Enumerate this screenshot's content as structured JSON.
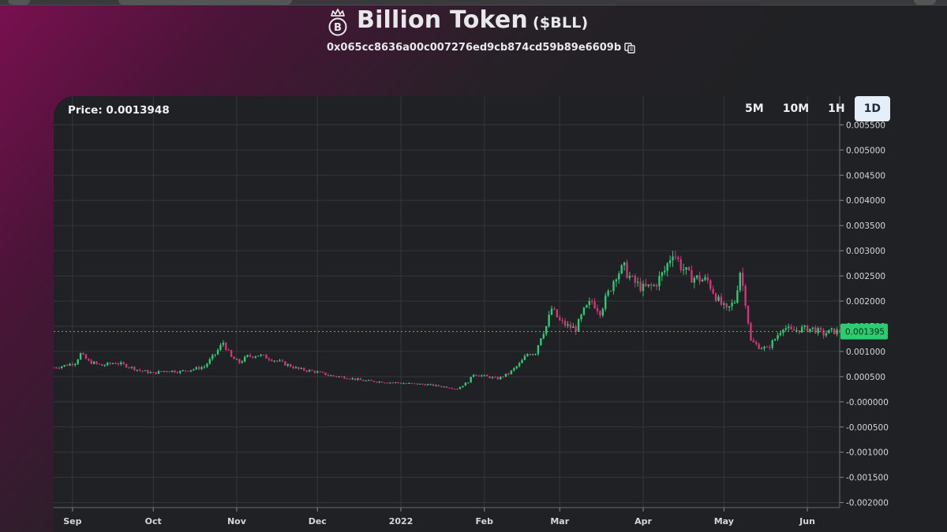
{
  "header": {
    "token_name": "Billion Token",
    "token_symbol": "($BLL)",
    "address": "0x065cc8636a00c007276ed9cb874cd59b89e6609b",
    "logo_icon": "crown-b-logo-icon",
    "copy_icon": "copy-icon"
  },
  "chart_panel": {
    "price_label": "Price: 0.0013948",
    "timeframes": [
      {
        "label": "5M",
        "active": false
      },
      {
        "label": "10M",
        "active": false
      },
      {
        "label": "1H",
        "active": false
      },
      {
        "label": "1D",
        "active": true
      }
    ]
  },
  "colors": {
    "up": "#2ecc71",
    "down": "#d6337a",
    "last_price_badge": "#2ecc71",
    "grid": "#34363a",
    "background": "#202124"
  },
  "chart_data": {
    "type": "candlestick",
    "title": "",
    "xlabel": "",
    "ylabel": "",
    "last_price": 0.001395,
    "last_price_label": "0.001395",
    "ylim": [
      -0.0021,
      0.0056
    ],
    "y_ticks": [
      0.0055,
      0.005,
      0.0045,
      0.004,
      0.0035,
      0.003,
      0.0025,
      0.002,
      0.0015,
      0.001,
      0.0005,
      0.0,
      -0.0005,
      -0.001,
      -0.0015,
      -0.002
    ],
    "y_tick_labels": [
      "0.005500",
      "0.005000",
      "0.004500",
      "0.004000",
      "0.003500",
      "0.003000",
      "0.002500",
      "0.002000",
      "0.001500",
      "0.001000",
      "0.000500",
      "-0.000000",
      "-0.000500",
      "-0.001000",
      "-0.001500",
      "-0.002000"
    ],
    "x_range": [
      "2021-08-25",
      "2022-06-13"
    ],
    "x_ticks": [
      {
        "date": "2021-09-01",
        "label": "Sep"
      },
      {
        "date": "2021-10-01",
        "label": "Oct"
      },
      {
        "date": "2021-11-01",
        "label": "Nov"
      },
      {
        "date": "2021-12-01",
        "label": "Dec"
      },
      {
        "date": "2022-01-01",
        "label": "2022"
      },
      {
        "date": "2022-02-01",
        "label": "Feb"
      },
      {
        "date": "2022-03-01",
        "label": "Mar"
      },
      {
        "date": "2022-04-01",
        "label": "Apr"
      },
      {
        "date": "2022-05-01",
        "label": "May"
      },
      {
        "date": "2022-06-01",
        "label": "Jun"
      }
    ],
    "grid": true,
    "close_series": [
      [
        "2021-08-25",
        0.00068
      ],
      [
        "2021-08-29",
        0.00072
      ],
      [
        "2021-09-02",
        0.00078
      ],
      [
        "2021-09-04",
        0.00095
      ],
      [
        "2021-09-07",
        0.0008
      ],
      [
        "2021-09-12",
        0.00072
      ],
      [
        "2021-09-17",
        0.00078
      ],
      [
        "2021-09-22",
        0.0007
      ],
      [
        "2021-09-26",
        0.00062
      ],
      [
        "2021-10-01",
        0.00057
      ],
      [
        "2021-10-06",
        0.00062
      ],
      [
        "2021-10-11",
        0.0006
      ],
      [
        "2021-10-16",
        0.00065
      ],
      [
        "2021-10-20",
        0.0007
      ],
      [
        "2021-10-24",
        0.00095
      ],
      [
        "2021-10-27",
        0.00118
      ],
      [
        "2021-10-30",
        0.00088
      ],
      [
        "2021-11-02",
        0.00078
      ],
      [
        "2021-11-05",
        0.0009
      ],
      [
        "2021-11-09",
        0.00093
      ],
      [
        "2021-11-14",
        0.00085
      ],
      [
        "2021-11-19",
        0.00075
      ],
      [
        "2021-11-24",
        0.00065
      ],
      [
        "2021-11-30",
        0.0006
      ],
      [
        "2021-12-06",
        0.00052
      ],
      [
        "2021-12-12",
        0.00048
      ],
      [
        "2021-12-18",
        0.00042
      ],
      [
        "2021-12-24",
        0.0004
      ],
      [
        "2021-12-30",
        0.00038
      ],
      [
        "2022-01-05",
        0.00036
      ],
      [
        "2022-01-11",
        0.00034
      ],
      [
        "2022-01-17",
        0.0003
      ],
      [
        "2022-01-22",
        0.00026
      ],
      [
        "2022-01-26",
        0.0004
      ],
      [
        "2022-01-28",
        0.00055
      ],
      [
        "2022-02-02",
        0.0005
      ],
      [
        "2022-02-06",
        0.00046
      ],
      [
        "2022-02-10",
        0.00056
      ],
      [
        "2022-02-14",
        0.00075
      ],
      [
        "2022-02-17",
        0.00095
      ],
      [
        "2022-02-20",
        0.00098
      ],
      [
        "2022-02-22",
        0.0013
      ],
      [
        "2022-02-24",
        0.0015
      ],
      [
        "2022-02-26",
        0.00185
      ],
      [
        "2022-03-01",
        0.0016
      ],
      [
        "2022-03-04",
        0.0015
      ],
      [
        "2022-03-07",
        0.00145
      ],
      [
        "2022-03-10",
        0.0018
      ],
      [
        "2022-03-13",
        0.002
      ],
      [
        "2022-03-16",
        0.0018
      ],
      [
        "2022-03-19",
        0.00215
      ],
      [
        "2022-03-22",
        0.00255
      ],
      [
        "2022-03-25",
        0.00265
      ],
      [
        "2022-03-28",
        0.0024
      ],
      [
        "2022-04-01",
        0.00225
      ],
      [
        "2022-04-05",
        0.0023
      ],
      [
        "2022-04-09",
        0.0026
      ],
      [
        "2022-04-12",
        0.003
      ],
      [
        "2022-04-15",
        0.0027
      ],
      [
        "2022-04-18",
        0.0025
      ],
      [
        "2022-04-21",
        0.00245
      ],
      [
        "2022-04-25",
        0.0024
      ],
      [
        "2022-04-29",
        0.002
      ],
      [
        "2022-05-02",
        0.0018
      ],
      [
        "2022-05-05",
        0.002
      ],
      [
        "2022-05-07",
        0.0026
      ],
      [
        "2022-05-09",
        0.002
      ],
      [
        "2022-05-11",
        0.0012
      ],
      [
        "2022-05-14",
        0.0011
      ],
      [
        "2022-05-17",
        0.00105
      ],
      [
        "2022-05-20",
        0.00125
      ],
      [
        "2022-05-23",
        0.0015
      ],
      [
        "2022-05-26",
        0.0014
      ],
      [
        "2022-05-30",
        0.00145
      ],
      [
        "2022-06-03",
        0.00145
      ],
      [
        "2022-06-07",
        0.00135
      ],
      [
        "2022-06-10",
        0.0014
      ],
      [
        "2022-06-12",
        0.001395
      ]
    ]
  }
}
